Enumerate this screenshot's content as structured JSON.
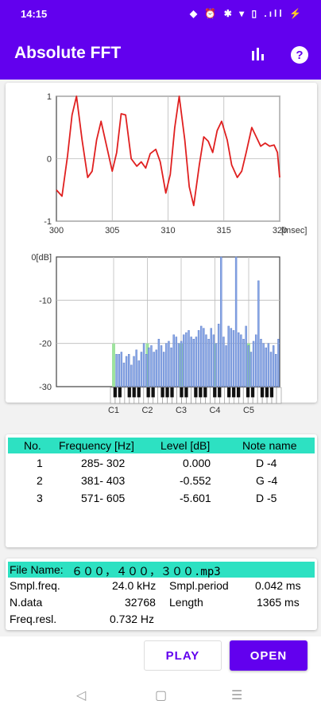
{
  "status_bar": {
    "time": "14:15",
    "icons_text": "◆ ⏰ ✱ ▾ ▯ .ıll ⚡"
  },
  "app_bar": {
    "title": "Absolute FFT",
    "chart_icon": "bar-chart-icon",
    "help_icon": "help-icon"
  },
  "chart_data": [
    {
      "type": "line",
      "xlabel": "[msec]",
      "x_ticks": [
        "300",
        "305",
        "310",
        "315",
        "320"
      ],
      "y_ticks": [
        "1",
        "0",
        "-1"
      ],
      "xlim": [
        300,
        320
      ],
      "ylim": [
        -1,
        1
      ],
      "series": [
        {
          "color": "#e02020",
          "x": [
            300,
            300.5,
            301,
            301.4,
            301.8,
            302.3,
            302.8,
            303.2,
            303.6,
            304,
            304.5,
            305,
            305.4,
            305.8,
            306.2,
            306.7,
            307.2,
            307.6,
            308,
            308.4,
            308.9,
            309.3,
            309.8,
            310.2,
            310.6,
            311,
            311.5,
            311.9,
            312.3,
            312.8,
            313.2,
            313.6,
            314,
            314.4,
            314.8,
            315.3,
            315.7,
            316.2,
            316.6,
            317,
            317.5,
            317.9,
            318.3,
            318.7,
            319.1,
            319.5,
            319.8,
            320
          ],
          "y": [
            -0.5,
            -0.6,
            0.05,
            0.7,
            1.0,
            0.3,
            -0.3,
            -0.2,
            0.3,
            0.6,
            0.2,
            -0.2,
            0.1,
            0.72,
            0.7,
            0.0,
            -0.12,
            -0.05,
            -0.15,
            0.08,
            0.15,
            -0.05,
            -0.55,
            -0.25,
            0.5,
            1.0,
            0.3,
            -0.45,
            -0.75,
            -0.1,
            0.35,
            0.28,
            0.1,
            0.45,
            0.6,
            0.3,
            -0.1,
            -0.3,
            -0.2,
            0.1,
            0.5,
            0.35,
            0.2,
            0.25,
            0.2,
            0.22,
            0.1,
            -0.3
          ]
        }
      ]
    },
    {
      "type": "bar",
      "ylabel": "[dB]",
      "y_ticks": [
        "0[dB]",
        "-10",
        "-20",
        "-30"
      ],
      "ylim": [
        -30,
        0
      ],
      "note_labels": [
        "C1",
        "C2",
        "C3",
        "C4",
        "C5"
      ],
      "values": [
        -22.5,
        -22.5,
        -22,
        -24.5,
        -23,
        -22.5,
        -25,
        -23,
        -21.5,
        -24,
        -22,
        -20,
        -22.5,
        -21,
        -20.5,
        -22,
        -21.5,
        -19,
        -20.5,
        -22,
        -20,
        -19.5,
        -21,
        -18,
        -18.5,
        -20,
        -19.5,
        -18,
        -17.5,
        -17,
        -18.5,
        -19,
        -18.5,
        -17,
        -16,
        -16.5,
        -18,
        -19,
        -16.5,
        -18,
        -20,
        -15.5,
        0,
        -18.5,
        -20.5,
        -16,
        -16.5,
        -17,
        0,
        -17.5,
        -18,
        -19,
        -16,
        -20.5,
        -22,
        -19.5,
        -18,
        -5.5,
        -19,
        -20,
        -21,
        -20,
        -22,
        -20.5,
        -22.5,
        -19
      ]
    }
  ],
  "peaks_table": {
    "headers": [
      "No.",
      "Frequency [Hz]",
      "Level [dB]",
      "Note name"
    ],
    "rows": [
      {
        "no": "1",
        "freq": "285-  302",
        "level": "0.000",
        "note": "D -4"
      },
      {
        "no": "2",
        "freq": "381-  403",
        "level": "-0.552",
        "note": "G -4"
      },
      {
        "no": "3",
        "freq": "571-  605",
        "level": "-5.601",
        "note": "D -5"
      }
    ]
  },
  "file_info": {
    "file_name_label": "File Name:",
    "file_name": "６００，４００，３００.mp3",
    "smpl_freq_label": "Smpl.freq.",
    "smpl_freq": "24.0 kHz",
    "smpl_period_label": "Smpl.period",
    "smpl_period": "0.042 ms",
    "ndata_label": "N.data",
    "ndata": "32768",
    "length_label": "Length",
    "length": "1365 ms",
    "freq_resl_label": "Freq.resl.",
    "freq_resl": "0.732 Hz"
  },
  "buttons": {
    "play": "PLAY",
    "open": "OPEN"
  },
  "nav": {
    "back": "◁",
    "home": "▢",
    "menu": "☰"
  }
}
